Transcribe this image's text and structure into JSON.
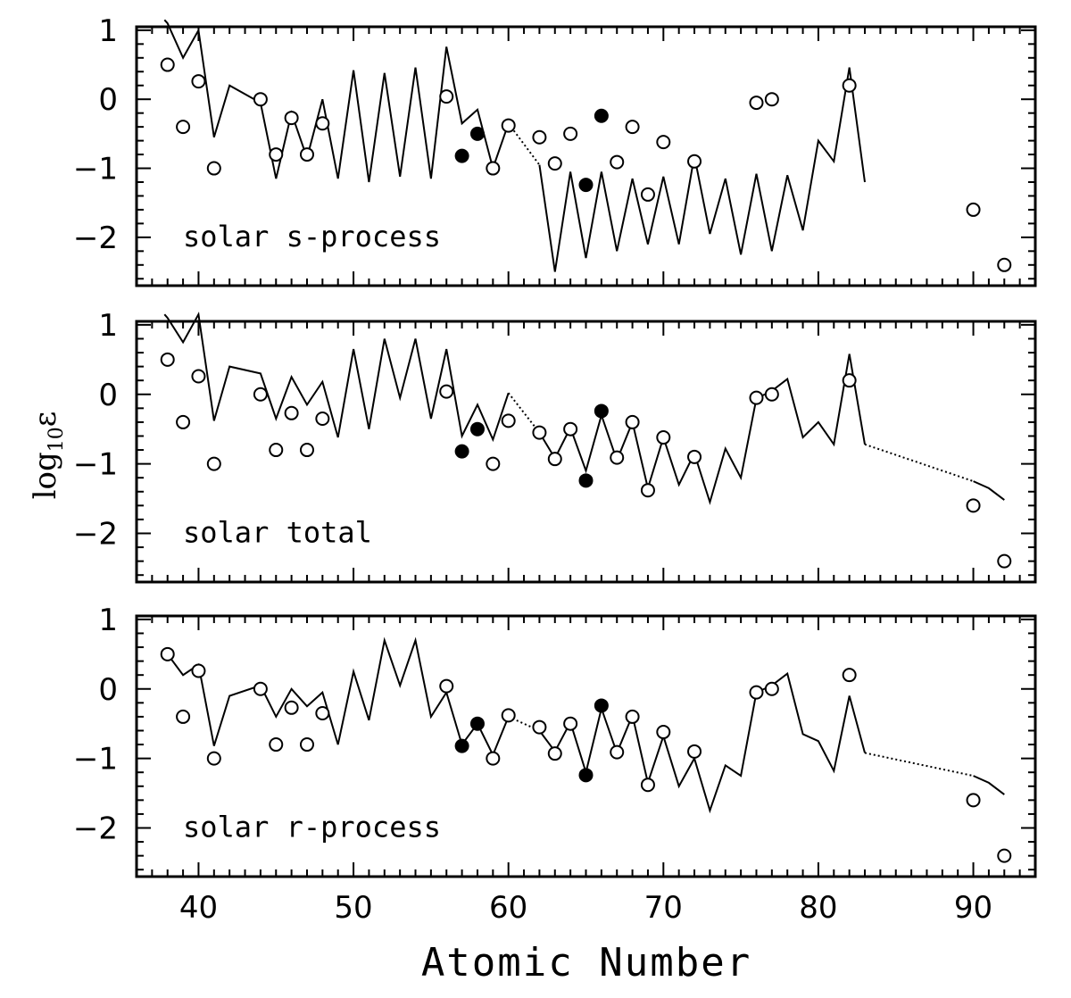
{
  "chart_data": {
    "type": "line",
    "xlabel": "Atomic Number",
    "ylabel": "log",
    "ylabel_sub": "10",
    "ylabel_symbol": "ε",
    "xlim": [
      36,
      94
    ],
    "ylim": [
      -2.7,
      1.05
    ],
    "x_ticks": [
      40,
      50,
      60,
      70,
      80,
      90
    ],
    "y_ticks": [
      1,
      0,
      -1,
      -2
    ],
    "y_tick_labels": [
      "1",
      "0",
      "−1",
      "−2"
    ],
    "observed_open": {
      "x": [
        38,
        39,
        40,
        41,
        44,
        45,
        46,
        47,
        48,
        56,
        59,
        60,
        62,
        63,
        64,
        67,
        68,
        69,
        70,
        72,
        76,
        77,
        82,
        90,
        92
      ],
      "y": [
        0.5,
        -0.4,
        0.26,
        -1.0,
        0.0,
        -0.8,
        -0.27,
        -0.8,
        -0.35,
        0.04,
        -1.0,
        -0.38,
        -0.55,
        -0.93,
        -0.5,
        -0.91,
        -0.4,
        -1.38,
        -0.62,
        -0.9,
        -0.05,
        0.0,
        0.2,
        -1.6,
        -2.4
      ]
    },
    "observed_filled": {
      "x": [
        57,
        58,
        65,
        66
      ],
      "y": [
        -0.82,
        -0.5,
        -1.24,
        -0.24
      ]
    },
    "panels": [
      {
        "label": "solar s-process",
        "line_solid": [
          {
            "x": [
              37.8,
              38,
              39,
              40,
              41,
              42,
              44,
              45,
              46,
              47,
              48,
              49,
              50,
              51,
              52,
              53,
              54,
              55,
              56,
              57,
              58,
              59,
              60
            ],
            "y": [
              1.15,
              1.1,
              0.6,
              1.0,
              -0.55,
              0.2,
              -0.05,
              -1.15,
              -0.2,
              -0.85,
              0.0,
              -1.15,
              0.42,
              -1.2,
              0.38,
              -1.12,
              0.46,
              -1.15,
              0.76,
              -0.35,
              -0.15,
              -1.0,
              -0.35
            ]
          },
          {
            "x": [
              62,
              63,
              64,
              65,
              66,
              67,
              68,
              69,
              70,
              71,
              72,
              73,
              74,
              75,
              76,
              77,
              78,
              79,
              80,
              81,
              82,
              83
            ],
            "y": [
              -0.95,
              -2.5,
              -1.05,
              -2.3,
              -1.05,
              -2.2,
              -1.15,
              -2.1,
              -1.12,
              -2.1,
              -0.82,
              -1.95,
              -1.15,
              -2.25,
              -1.08,
              -2.2,
              -1.1,
              -1.9,
              -0.6,
              -0.9,
              0.46,
              -1.2
            ]
          }
        ],
        "line_dotted": [
          {
            "x": [
              60,
              62
            ],
            "y": [
              -0.35,
              -0.95
            ]
          }
        ]
      },
      {
        "label": "solar total",
        "line_solid": [
          {
            "x": [
              37.8,
              38,
              39,
              40,
              41,
              42,
              44,
              45,
              46,
              47,
              48,
              49,
              50,
              51,
              52,
              53,
              54,
              55,
              56,
              57,
              58,
              59,
              60
            ],
            "y": [
              1.15,
              1.1,
              0.75,
              1.15,
              -0.38,
              0.4,
              0.3,
              -0.35,
              0.25,
              -0.15,
              0.18,
              -0.62,
              0.65,
              -0.5,
              0.8,
              -0.05,
              0.8,
              -0.35,
              0.65,
              -0.6,
              -0.15,
              -0.65,
              0.02
            ]
          },
          {
            "x": [
              62,
              63,
              64,
              65,
              66,
              67,
              68,
              69,
              70,
              71,
              72,
              73,
              74,
              75,
              76,
              77,
              78,
              79,
              80,
              81,
              82,
              83
            ],
            "y": [
              -0.55,
              -0.92,
              -0.48,
              -1.1,
              -0.3,
              -0.95,
              -0.4,
              -1.35,
              -0.62,
              -1.3,
              -0.85,
              -1.55,
              -0.78,
              -1.2,
              -0.06,
              0.05,
              0.22,
              -0.62,
              -0.4,
              -0.72,
              0.58,
              -0.72
            ]
          }
        ],
        "line_dotted": [
          {
            "x": [
              60,
              62
            ],
            "y": [
              0.02,
              -0.55
            ]
          },
          {
            "x": [
              83,
              90
            ],
            "y": [
              -0.72,
              -1.25
            ]
          }
        ],
        "line_tail": {
          "x": [
            90,
            91,
            92
          ],
          "y": [
            -1.25,
            -1.35,
            -1.52
          ]
        }
      },
      {
        "label": "solar r-process",
        "line_solid": [
          {
            "x": [
              38,
              39,
              40,
              41,
              42,
              44,
              45,
              46,
              47,
              48,
              49,
              50,
              51,
              52,
              53,
              54,
              55,
              56,
              57,
              58,
              59,
              60
            ],
            "y": [
              0.5,
              0.2,
              0.35,
              -0.82,
              -0.1,
              0.05,
              -0.4,
              0.0,
              -0.25,
              -0.05,
              -0.8,
              0.25,
              -0.45,
              0.7,
              0.05,
              0.7,
              -0.4,
              -0.05,
              -0.8,
              -0.5,
              -0.95,
              -0.4
            ]
          },
          {
            "x": [
              62,
              63,
              64,
              65,
              66,
              67,
              68,
              69,
              70,
              71,
              72,
              73,
              74,
              75,
              76,
              77,
              78,
              79,
              80,
              81,
              82,
              83
            ],
            "y": [
              -0.6,
              -0.9,
              -0.48,
              -1.2,
              -0.28,
              -0.92,
              -0.38,
              -1.35,
              -0.68,
              -1.4,
              -1.0,
              -1.75,
              -1.1,
              -1.25,
              -0.05,
              0.05,
              0.22,
              -0.65,
              -0.75,
              -1.18,
              -0.1,
              -0.92
            ]
          }
        ],
        "line_dotted": [
          {
            "x": [
              60,
              62
            ],
            "y": [
              -0.4,
              -0.6
            ]
          },
          {
            "x": [
              83,
              90
            ],
            "y": [
              -0.92,
              -1.25
            ]
          }
        ],
        "line_tail": {
          "x": [
            90,
            91,
            92
          ],
          "y": [
            -1.25,
            -1.35,
            -1.52
          ]
        }
      }
    ]
  }
}
